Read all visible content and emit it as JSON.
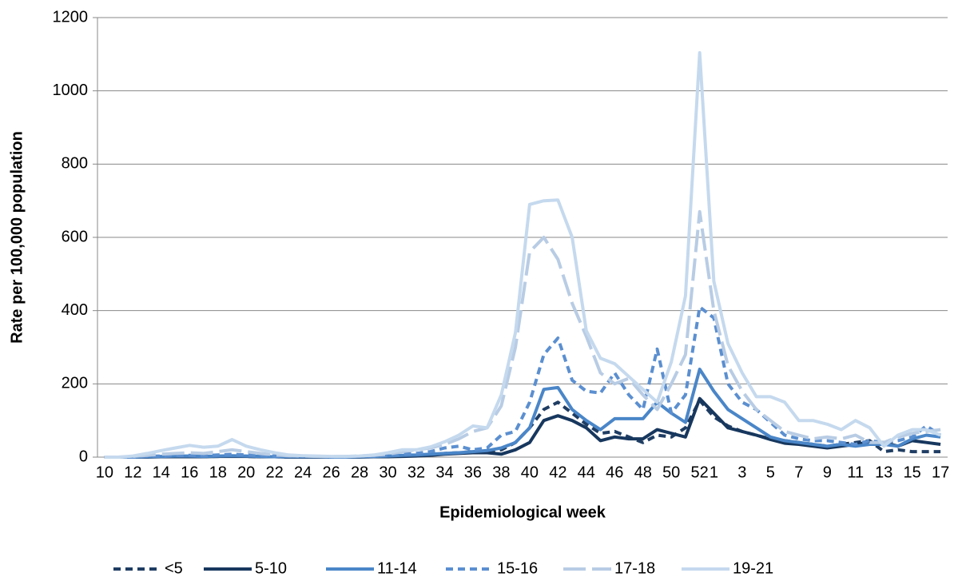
{
  "chart_data": {
    "type": "line",
    "y_label": "Rate per 100,000 population",
    "x_label": "Epidemiological week",
    "categories": [
      "10",
      null,
      "12",
      null,
      "14",
      null,
      "16",
      null,
      "18",
      null,
      "20",
      null,
      "22",
      null,
      "24",
      null,
      "26",
      null,
      "28",
      null,
      "30",
      null,
      "32",
      null,
      "34",
      null,
      "36",
      null,
      "38",
      null,
      "40",
      null,
      "42",
      null,
      "44",
      null,
      "46",
      null,
      "48",
      null,
      "50",
      null,
      "52",
      "1",
      null,
      "3",
      null,
      "5",
      null,
      "7",
      null,
      "9",
      null,
      "11",
      null,
      "13",
      null,
      "15",
      null,
      "17"
    ],
    "ylim": [
      0,
      1200
    ],
    "yticks": [
      0,
      200,
      400,
      600,
      800,
      1000,
      1200
    ],
    "grid": true,
    "legend": "bottom",
    "series": [
      {
        "name": "<5",
        "color": "#1f3d63",
        "dash": "dashed",
        "values": [
          0,
          0,
          0,
          1,
          1,
          2,
          2,
          2,
          2,
          3,
          2,
          1,
          1,
          0,
          0,
          0,
          0,
          0,
          1,
          1,
          2,
          3,
          5,
          7,
          10,
          12,
          15,
          15,
          20,
          40,
          80,
          130,
          150,
          120,
          90,
          65,
          70,
          55,
          40,
          60,
          55,
          80,
          155,
          110,
          85,
          70,
          60,
          50,
          45,
          40,
          35,
          30,
          35,
          40,
          45,
          15,
          20,
          15,
          15,
          15
        ]
      },
      {
        "name": "5-10",
        "color": "#17375e",
        "dash": "solid",
        "values": [
          0,
          0,
          0,
          0,
          1,
          1,
          1,
          1,
          2,
          2,
          2,
          1,
          1,
          0,
          0,
          0,
          0,
          0,
          0,
          1,
          1,
          2,
          3,
          5,
          8,
          10,
          12,
          12,
          8,
          20,
          40,
          100,
          113,
          100,
          80,
          45,
          55,
          50,
          50,
          75,
          65,
          55,
          160,
          120,
          80,
          70,
          60,
          48,
          38,
          35,
          30,
          25,
          30,
          35,
          40,
          40,
          30,
          45,
          40,
          35
        ]
      },
      {
        "name": "11-14",
        "color": "#4a86c8",
        "dash": "solid",
        "values": [
          0,
          0,
          0,
          1,
          2,
          3,
          3,
          2,
          3,
          4,
          3,
          2,
          1,
          1,
          1,
          1,
          0,
          0,
          1,
          2,
          3,
          5,
          6,
          8,
          10,
          12,
          15,
          18,
          25,
          40,
          80,
          185,
          190,
          130,
          100,
          75,
          105,
          105,
          105,
          150,
          120,
          95,
          240,
          180,
          130,
          105,
          80,
          55,
          45,
          40,
          35,
          30,
          35,
          30,
          35,
          35,
          30,
          50,
          60,
          55
        ]
      },
      {
        "name": "15-16",
        "color": "#5b8fd0",
        "dash": "dashed",
        "values": [
          0,
          0,
          0,
          2,
          3,
          4,
          5,
          4,
          6,
          8,
          6,
          4,
          3,
          2,
          2,
          1,
          1,
          1,
          2,
          3,
          5,
          8,
          10,
          15,
          25,
          30,
          20,
          25,
          60,
          70,
          150,
          280,
          325,
          210,
          180,
          175,
          230,
          170,
          130,
          295,
          120,
          170,
          410,
          380,
          200,
          150,
          130,
          95,
          60,
          50,
          45,
          45,
          40,
          35,
          45,
          40,
          45,
          55,
          85,
          60
        ]
      },
      {
        "name": "17-18",
        "color": "#b8cce4",
        "dash": "longdash",
        "values": [
          0,
          0,
          2,
          5,
          8,
          10,
          12,
          10,
          15,
          20,
          15,
          10,
          6,
          4,
          3,
          2,
          2,
          2,
          3,
          5,
          8,
          15,
          20,
          25,
          35,
          50,
          70,
          80,
          140,
          300,
          560,
          600,
          540,
          420,
          330,
          230,
          200,
          215,
          170,
          130,
          200,
          280,
          670,
          400,
          250,
          180,
          130,
          100,
          70,
          60,
          50,
          55,
          50,
          60,
          40,
          40,
          55,
          65,
          70,
          75
        ]
      },
      {
        "name": "19-21",
        "color": "#c5d9ee",
        "dash": "solid",
        "values": [
          0,
          0,
          3,
          10,
          18,
          25,
          32,
          27,
          30,
          48,
          30,
          20,
          12,
          6,
          4,
          3,
          2,
          2,
          3,
          6,
          12,
          20,
          20,
          28,
          42,
          60,
          85,
          80,
          170,
          340,
          690,
          700,
          702,
          600,
          345,
          270,
          255,
          220,
          185,
          150,
          260,
          440,
          1104,
          480,
          310,
          230,
          165,
          165,
          150,
          100,
          100,
          90,
          75,
          100,
          80,
          30,
          60,
          75,
          75,
          60
        ]
      }
    ]
  }
}
